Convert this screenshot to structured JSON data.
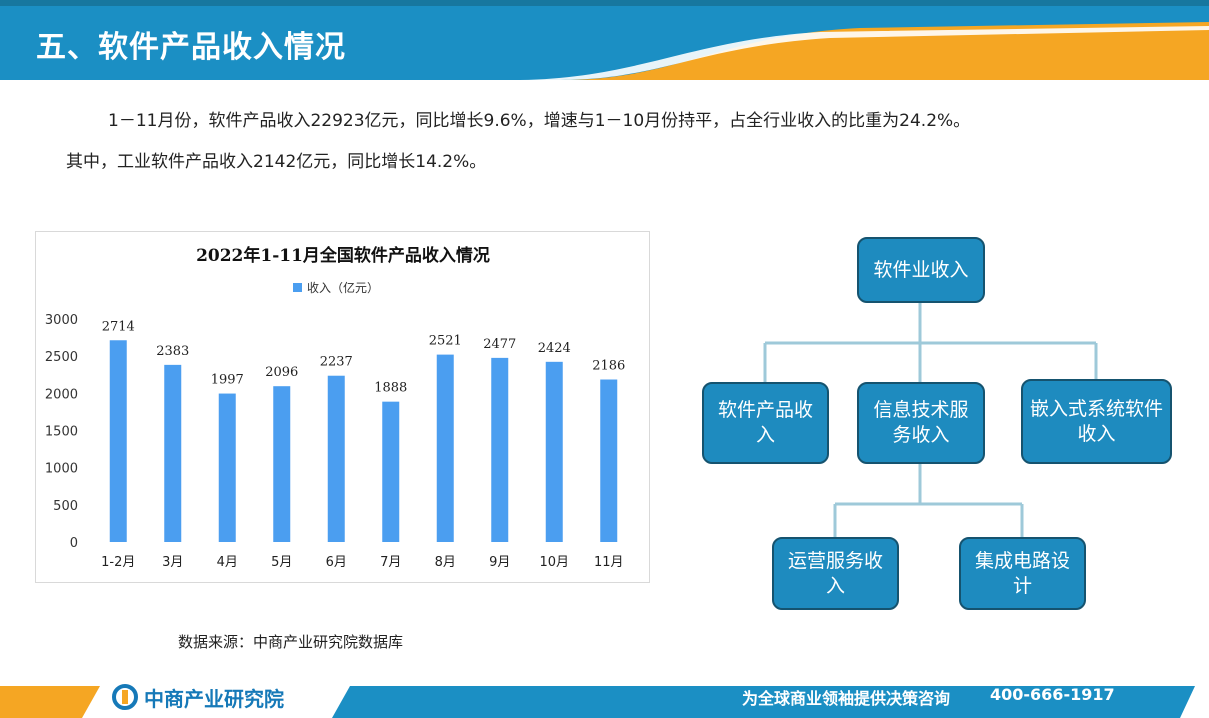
{
  "header": {
    "title": "五、软件产品收入情况"
  },
  "body": {
    "para1": "1－11月份，软件产品收入22923亿元，同比增长9.6%，增速与1－10月份持平，占全行业收入的比重为24.2%。",
    "para2": "其中，工业软件产品收入2142亿元，同比增长14.2%。"
  },
  "chart_data": {
    "type": "bar",
    "title": "2022年1-11月全国软件产品收入情况",
    "categories": [
      "1-2月",
      "3月",
      "4月",
      "5月",
      "6月",
      "7月",
      "8月",
      "9月",
      "10月",
      "11月"
    ],
    "series": [
      {
        "name": "收入（亿元）",
        "values": [
          2714,
          2383,
          1997,
          2096,
          2237,
          1888,
          2521,
          2477,
          2424,
          2186
        ]
      }
    ],
    "ylim": [
      0,
      3000
    ],
    "yticks": [
      0,
      500,
      1000,
      1500,
      2000,
      2500,
      3000
    ],
    "grid": false,
    "legend": "top-center",
    "color": "#4b9ef0"
  },
  "source": "数据来源：中商产业研究院数据库",
  "diagram": {
    "root": "软件业收入",
    "level1": [
      "软件产品收入",
      "信息技术服务收入",
      "嵌入式系统软件收入"
    ],
    "level2": [
      "运营服务收入",
      "集成电路设计"
    ]
  },
  "footer": {
    "brand": "中商产业研究院",
    "slogan": "为全球商业领袖提供决策咨询",
    "phone": "400-666-1917"
  },
  "colors": {
    "header_blue": "#1b8fc4",
    "accent_orange": "#f5a623",
    "node_blue": "#1e8bbf"
  }
}
